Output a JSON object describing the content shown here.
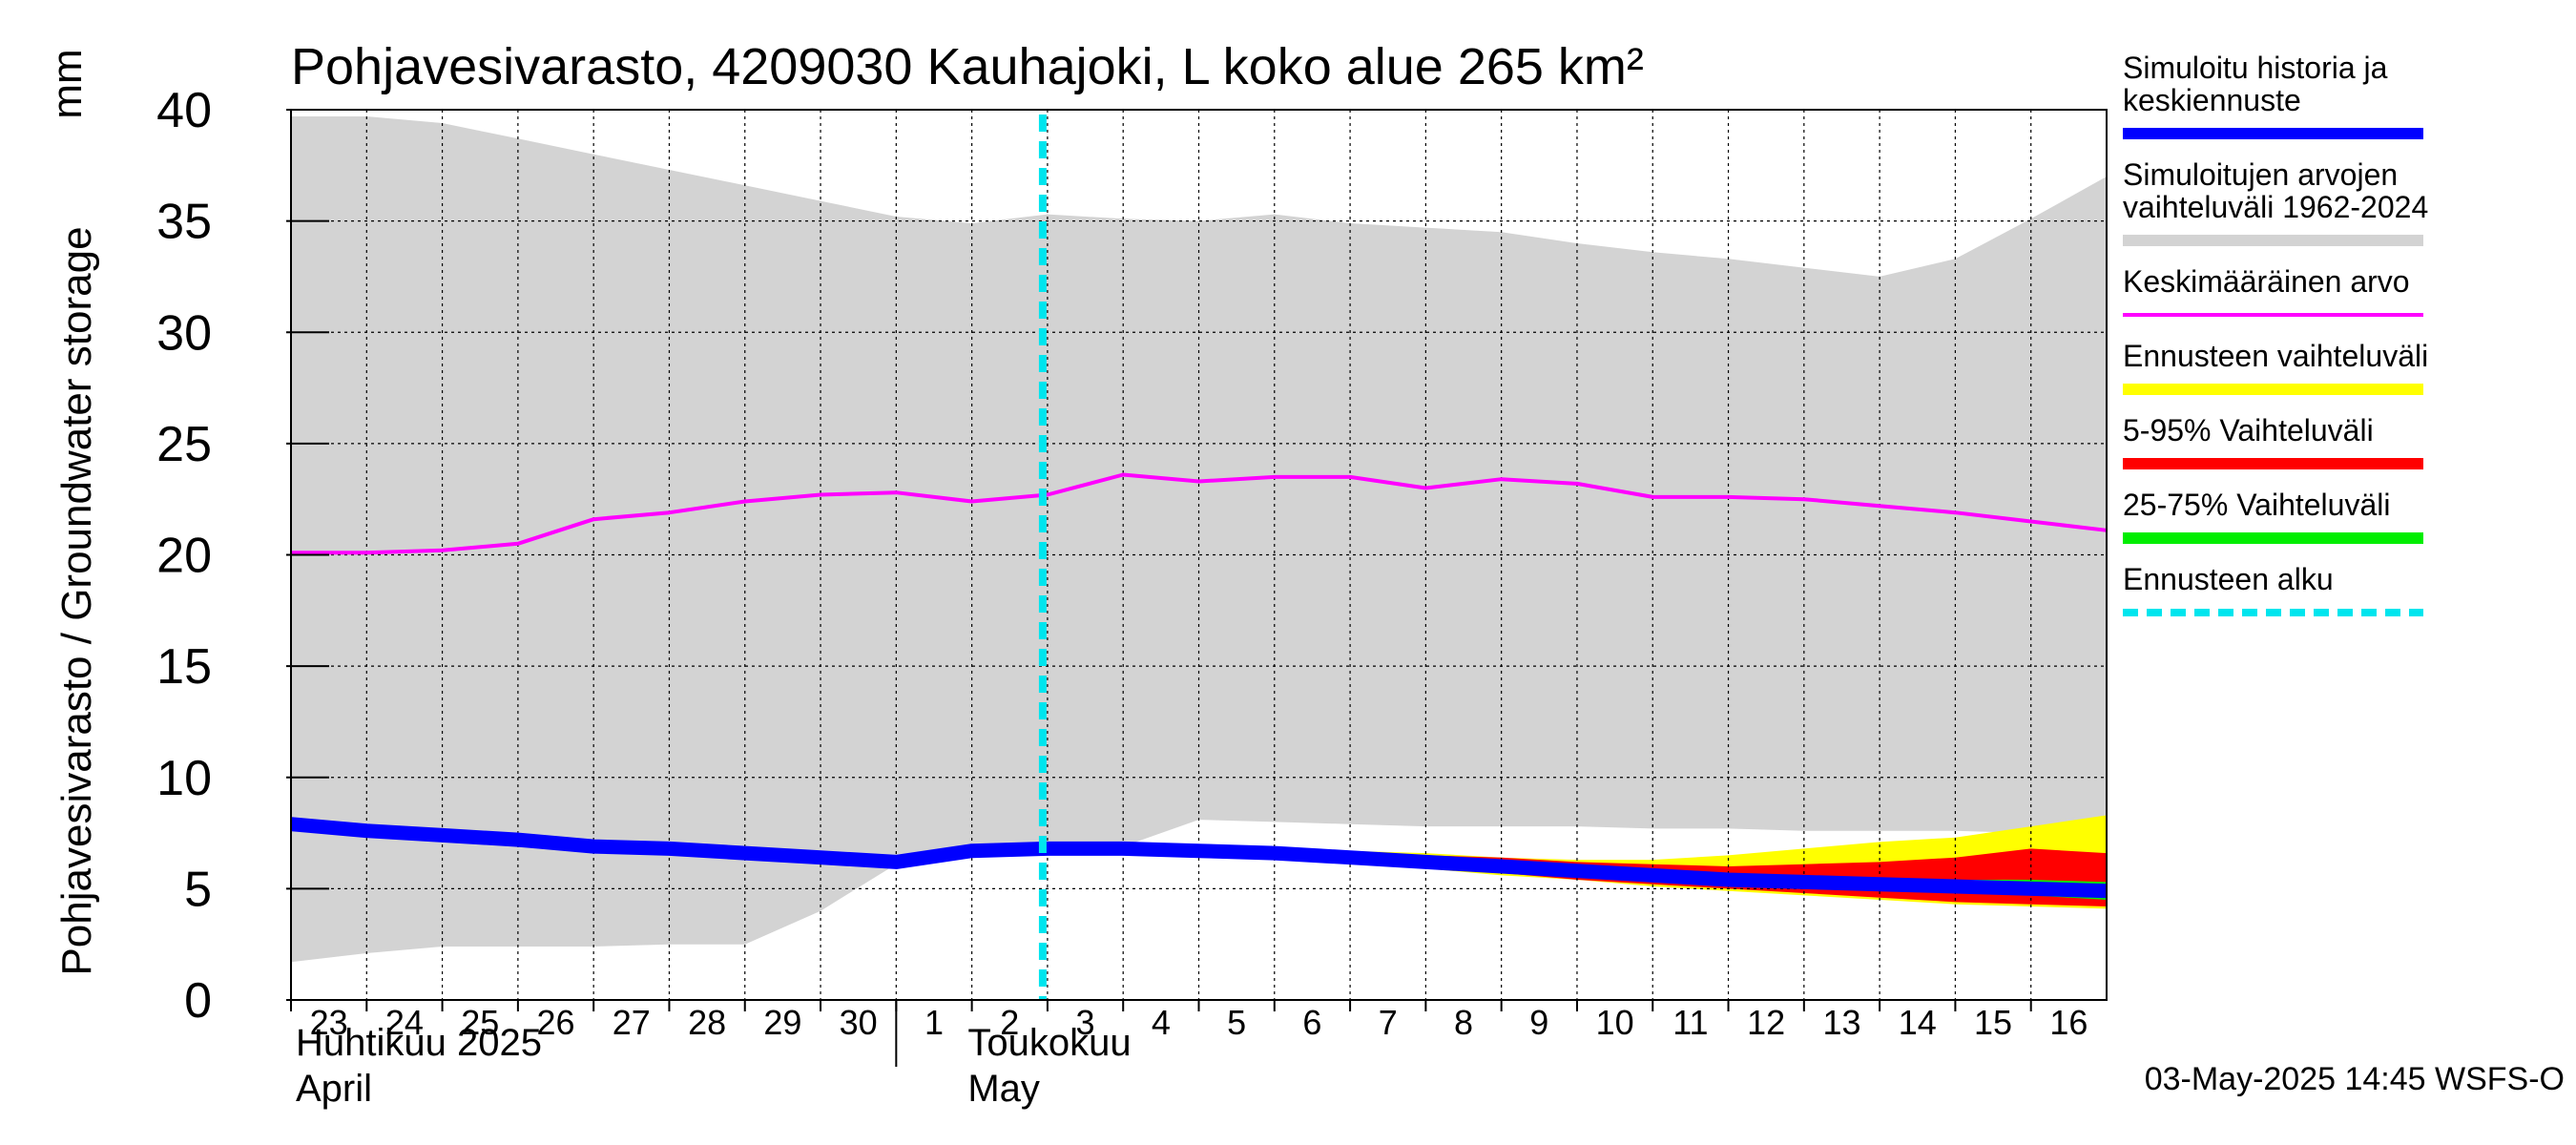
{
  "chart_data": {
    "type": "area",
    "title": "Pohjavesivarasto, 4209030 Kauhajoki, L koko alue 265 km²",
    "ylabel": "Pohjavesivarasto / Groundwater storage",
    "yunit": "mm",
    "ylim": [
      0,
      40
    ],
    "yticks": [
      0,
      5,
      10,
      15,
      20,
      25,
      30,
      35,
      40
    ],
    "x_dates": [
      "2025-04-23",
      "2025-04-24",
      "2025-04-25",
      "2025-04-26",
      "2025-04-27",
      "2025-04-28",
      "2025-04-29",
      "2025-04-30",
      "2025-05-01",
      "2025-05-02",
      "2025-05-03",
      "2025-05-04",
      "2025-05-05",
      "2025-05-06",
      "2025-05-07",
      "2025-05-08",
      "2025-05-09",
      "2025-05-10",
      "2025-05-11",
      "2025-05-12",
      "2025-05-13",
      "2025-05-14",
      "2025-05-15",
      "2025-05-16",
      "2025-05-17"
    ],
    "xtick_labels": [
      "23",
      "24",
      "25",
      "26",
      "27",
      "28",
      "29",
      "30",
      "1",
      "2",
      "3",
      "4",
      "5",
      "6",
      "7",
      "8",
      "9",
      "10",
      "11",
      "12",
      "13",
      "14",
      "15",
      "16"
    ],
    "month_labels": [
      {
        "line1": "Huhtikuu  2025",
        "line2": "April"
      },
      {
        "line1": "Toukokuu",
        "line2": "May"
      }
    ],
    "forecast_start": "2025-05-03",
    "grid": true,
    "legend_position": "right",
    "series": [
      {
        "name": "Simuloitujen arvojen vaihteluväli 1962-2024",
        "kind": "band",
        "color": "#d3d3d3",
        "upper": [
          39.7,
          39.7,
          39.4,
          38.7,
          38.0,
          37.3,
          36.6,
          35.9,
          35.2,
          34.9,
          35.3,
          35.1,
          35.0,
          35.3,
          34.9,
          34.7,
          34.5,
          34.0,
          33.6,
          33.3,
          32.9,
          32.5,
          33.3,
          35.1,
          37.0
        ],
        "lower": [
          1.7,
          2.1,
          2.4,
          2.4,
          2.4,
          2.5,
          2.5,
          4.0,
          6.1,
          6.7,
          6.8,
          6.9,
          8.1,
          8.0,
          7.9,
          7.8,
          7.8,
          7.8,
          7.7,
          7.7,
          7.6,
          7.6,
          7.6,
          7.5,
          7.4
        ]
      },
      {
        "name": "Ennusteen vaihteluväli",
        "kind": "band",
        "color": "#ffff00",
        "upper": [
          null,
          null,
          null,
          null,
          null,
          null,
          null,
          null,
          null,
          null,
          6.8,
          6.8,
          6.9,
          6.8,
          6.7,
          6.6,
          6.4,
          6.3,
          6.3,
          6.5,
          6.8,
          7.1,
          7.3,
          7.8,
          8.3
        ],
        "lower": [
          null,
          null,
          null,
          null,
          null,
          null,
          null,
          null,
          null,
          null,
          6.8,
          6.7,
          6.6,
          6.5,
          6.2,
          5.9,
          5.6,
          5.4,
          5.1,
          4.9,
          4.7,
          4.5,
          4.3,
          4.2,
          4.1
        ]
      },
      {
        "name": "5-95% Vaihteluväli",
        "kind": "band",
        "color": "#ff0000",
        "upper": [
          null,
          null,
          null,
          null,
          null,
          null,
          null,
          null,
          null,
          null,
          6.8,
          6.8,
          6.8,
          6.7,
          6.6,
          6.5,
          6.4,
          6.2,
          6.1,
          6.0,
          6.1,
          6.2,
          6.4,
          6.8,
          6.6
        ],
        "lower": [
          null,
          null,
          null,
          null,
          null,
          null,
          null,
          null,
          null,
          null,
          6.8,
          6.7,
          6.6,
          6.5,
          6.2,
          5.9,
          5.7,
          5.4,
          5.2,
          5.0,
          4.8,
          4.6,
          4.4,
          4.3,
          4.2
        ]
      },
      {
        "name": "25-75% Vaihteluväli",
        "kind": "band",
        "color": "#00ee00",
        "upper": [
          null,
          null,
          null,
          null,
          null,
          null,
          null,
          null,
          null,
          null,
          6.8,
          6.8,
          6.7,
          6.6,
          6.4,
          6.2,
          6.0,
          5.8,
          5.7,
          5.6,
          5.5,
          5.4,
          5.4,
          5.4,
          5.3
        ],
        "lower": [
          null,
          null,
          null,
          null,
          null,
          null,
          null,
          null,
          null,
          null,
          6.8,
          6.7,
          6.6,
          6.5,
          6.3,
          6.0,
          5.8,
          5.6,
          5.4,
          5.2,
          5.0,
          4.9,
          4.8,
          4.7,
          4.5
        ]
      },
      {
        "name": "Keskimääräinen arvo",
        "kind": "line",
        "color": "#ff00ff",
        "values": [
          20.1,
          20.1,
          20.2,
          20.5,
          21.6,
          21.9,
          22.4,
          22.7,
          22.8,
          22.4,
          22.7,
          23.6,
          23.3,
          23.5,
          23.5,
          23.0,
          23.4,
          23.2,
          22.6,
          22.6,
          22.5,
          22.2,
          21.9,
          21.5,
          21.1
        ]
      },
      {
        "name": "Simuloitu historia ja keskiennuste",
        "kind": "line",
        "color": "#0000ff",
        "values": [
          7.9,
          7.6,
          7.4,
          7.2,
          6.9,
          6.8,
          6.6,
          6.4,
          6.2,
          6.7,
          6.8,
          6.8,
          6.7,
          6.6,
          6.4,
          6.2,
          6.0,
          5.8,
          5.6,
          5.4,
          5.3,
          5.2,
          5.1,
          5.0,
          4.9
        ]
      }
    ],
    "legend": [
      {
        "label_lines": [
          "Simuloitu historia ja",
          "keskiennuste"
        ],
        "color": "#0000ff",
        "style": "thick"
      },
      {
        "label_lines": [
          "Simuloitujen arvojen",
          "vaihteluväli 1962-2024"
        ],
        "color": "#d3d3d3",
        "style": "thick"
      },
      {
        "label_lines": [
          "Keskimääräinen arvo"
        ],
        "color": "#ff00ff",
        "style": "thin"
      },
      {
        "label_lines": [
          "Ennusteen vaihteluväli"
        ],
        "color": "#ffff00",
        "style": "thick"
      },
      {
        "label_lines": [
          "5-95% Vaihteluväli"
        ],
        "color": "#ff0000",
        "style": "thick"
      },
      {
        "label_lines": [
          "25-75% Vaihteluväli"
        ],
        "color": "#00ee00",
        "style": "thick"
      },
      {
        "label_lines": [
          "Ennusteen alku"
        ],
        "color": "#00e5ee",
        "style": "dashed"
      }
    ],
    "timestamp": "03-May-2025 14:45 WSFS-O"
  }
}
